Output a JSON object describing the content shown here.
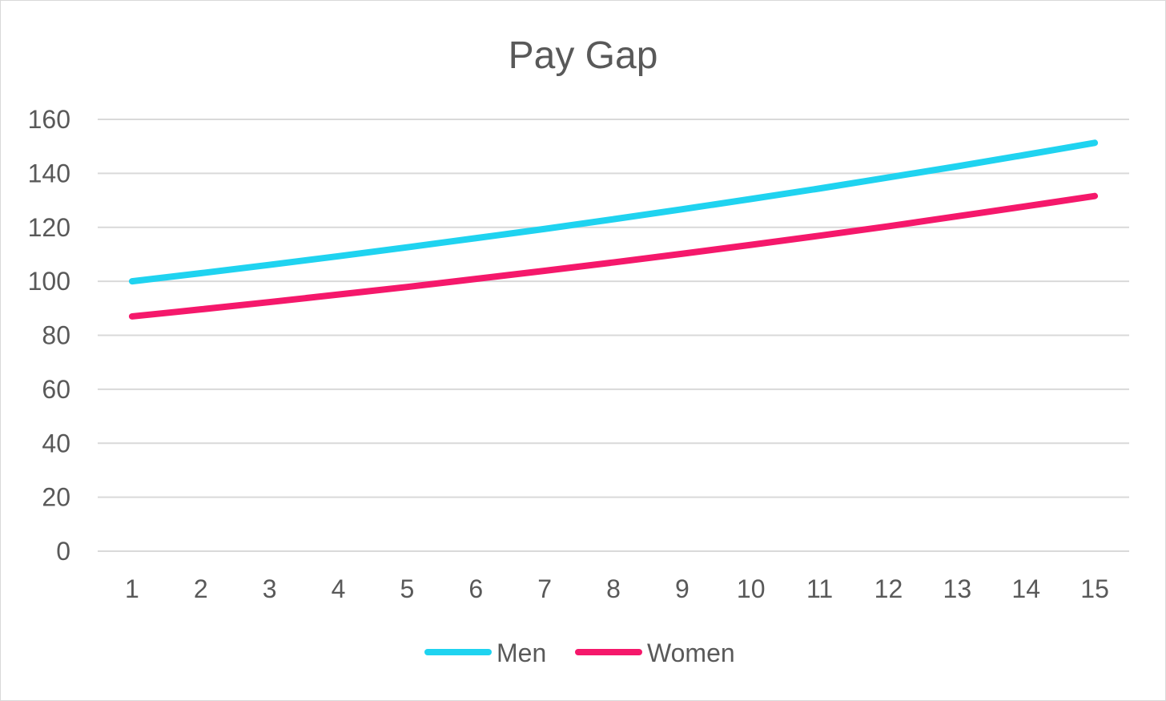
{
  "chart_data": {
    "type": "line",
    "title": "Pay Gap",
    "xlabel": "",
    "ylabel": "",
    "categories": [
      "1",
      "2",
      "3",
      "4",
      "5",
      "6",
      "7",
      "8",
      "9",
      "10",
      "11",
      "12",
      "13",
      "14",
      "15"
    ],
    "ylim": [
      0,
      160
    ],
    "yticks": [
      "0",
      "20",
      "40",
      "60",
      "80",
      "100",
      "120",
      "140",
      "160"
    ],
    "grid": true,
    "legend_position": "bottom",
    "series": [
      {
        "name": "Men",
        "color": "#1fd3f0",
        "values": [
          100,
          103,
          106.1,
          109.3,
          112.6,
          116,
          119.4,
          123,
          126.7,
          130.5,
          134.4,
          138.5,
          142.6,
          146.9,
          151.3
        ]
      },
      {
        "name": "Women",
        "color": "#f5186b",
        "values": [
          87,
          89.6,
          92.3,
          95.1,
          97.9,
          100.9,
          103.9,
          107,
          110.2,
          113.5,
          116.9,
          120.4,
          124.1,
          127.8,
          131.6
        ]
      }
    ]
  }
}
